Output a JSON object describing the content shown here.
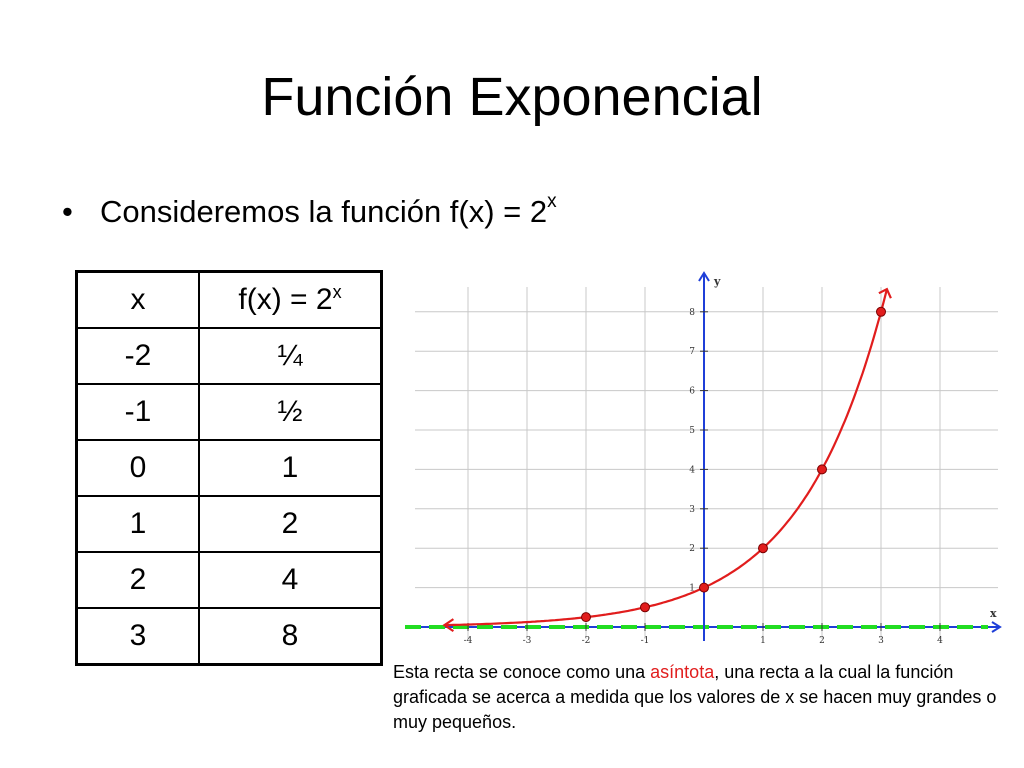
{
  "title": "Función Exponencial",
  "bullet": {
    "prefix": "Consideremos la función f(x) = 2",
    "exponent": "x"
  },
  "table": {
    "headers": {
      "x": "x",
      "fx_base": "f(x) = 2",
      "fx_exp": "x"
    },
    "rows": [
      {
        "x": "-2",
        "fx": "¼"
      },
      {
        "x": "-1",
        "fx": "½"
      },
      {
        "x": "0",
        "fx": "1"
      },
      {
        "x": "1",
        "fx": "2"
      },
      {
        "x": "2",
        "fx": "4"
      },
      {
        "x": "3",
        "fx": "8"
      }
    ]
  },
  "caption": {
    "before": "Esta recta se conoce como una ",
    "highlight": "asíntota",
    "after": ", una recta a la cual la función graficada se acerca a medida que los valores de x se hacen muy grandes o muy pequeños."
  },
  "colors": {
    "curve": "#e11d1d",
    "point": "#e11d1d",
    "y_axis": "#1f3fd8",
    "asymptote": "#22dd22",
    "x_axis": "#1f3fd8",
    "grid": "#c8c8c8",
    "highlight": "#e11d1d"
  },
  "chart_data": {
    "type": "line",
    "function": "2^x",
    "xlabel": "x",
    "ylabel": "y",
    "xlim": [
      -4.5,
      5.0
    ],
    "ylim": [
      -0.1,
      8.8
    ],
    "x_ticks": [
      -4,
      -3,
      -2,
      -1,
      1,
      2,
      3,
      4
    ],
    "y_ticks": [
      1,
      2,
      3,
      4,
      5,
      6,
      7,
      8
    ],
    "grid": true,
    "points": [
      {
        "x": -2,
        "y": 0.25
      },
      {
        "x": -1,
        "y": 0.5
      },
      {
        "x": 0,
        "y": 1
      },
      {
        "x": 1,
        "y": 2
      },
      {
        "x": 2,
        "y": 4
      },
      {
        "x": 3,
        "y": 8
      }
    ],
    "curve_domain": [
      -4.4,
      3.1
    ],
    "asymptote": {
      "y": 0
    }
  }
}
